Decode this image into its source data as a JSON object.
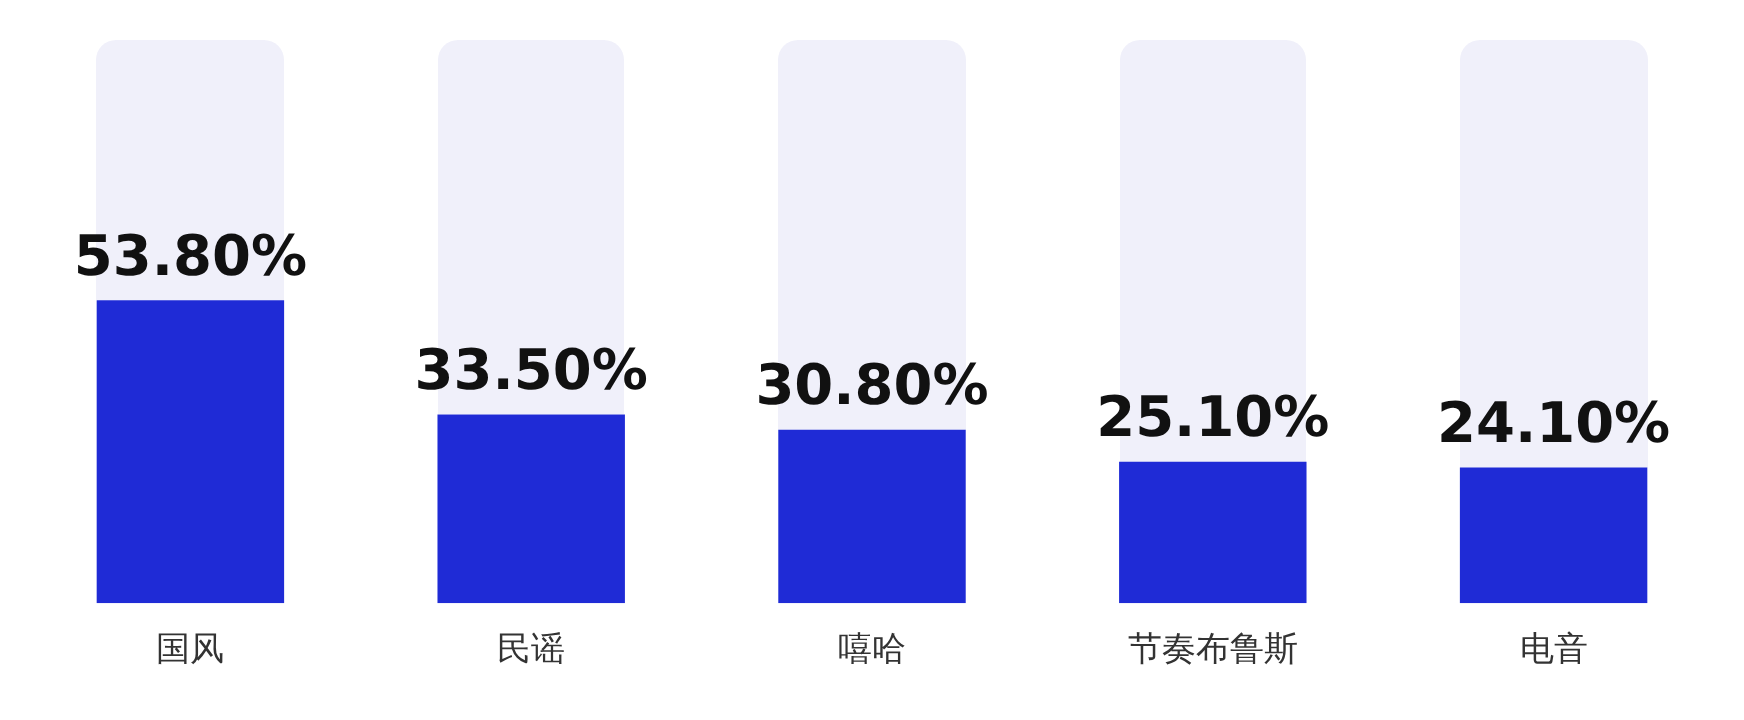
{
  "chart_data": {
    "type": "bar",
    "categories": [
      "国风",
      "民谣",
      "嘻哈",
      "节奏布鲁斯",
      "电音"
    ],
    "series": [
      {
        "color": "#1f2bd6",
        "values": [
          53.8,
          33.5,
          30.8,
          25.1,
          24.1
        ],
        "value_labels": [
          "53.80%",
          "33.50%",
          "30.80%",
          "25.10%",
          "24.10%"
        ]
      }
    ],
    "ylim": [
      0,
      100
    ],
    "tick_labels": "x",
    "grid": false,
    "legend": false
  }
}
